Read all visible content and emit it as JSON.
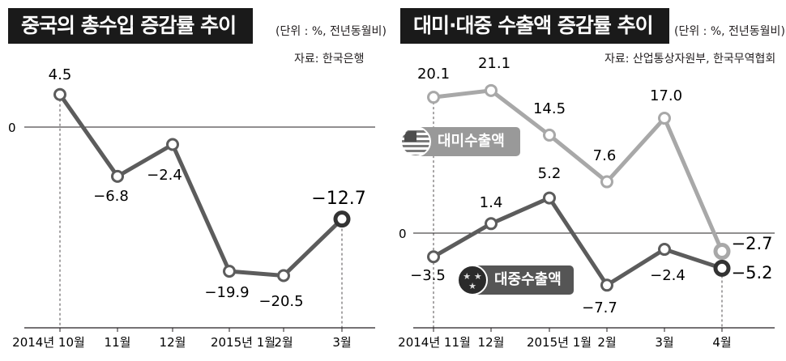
{
  "colors": {
    "dark_series": "#5c5c5c",
    "light_series": "#a8a8a8",
    "title_bg": "#1a1a1a",
    "axis": "#231f20"
  },
  "left": {
    "title": "중국의 총수입 증감률 추이",
    "unit": "(단위 : %, 전년동월비)",
    "source": "자료: 한국은행"
  },
  "right": {
    "title": "대미·대중 수출액 증감률 추이",
    "unit": "(단위 : %, 전년동월비)",
    "source": "자료: 산업통상자원부, 한국무역협회",
    "badge_us": "대미수출액",
    "badge_cn": "대중수출액",
    "icon_us": "us-flag-icon",
    "icon_cn": "china-flag-icon"
  },
  "chart_data": [
    {
      "type": "line",
      "title": "중국의 총수입 증감률 추이",
      "unit": "(단위 : %, 전년동월비)",
      "source": "자료: 한국은행",
      "categories": [
        "2014년 10월",
        "11월",
        "12월",
        "2015년 1월",
        "2월",
        "3월"
      ],
      "series": [
        {
          "values": [
            4.5,
            -6.8,
            -2.4,
            -19.9,
            -20.5,
            -12.7
          ],
          "labels": [
            "4.5",
            "-6.8",
            "-2.4",
            "-19.9",
            "-20.5",
            "-12.7"
          ]
        }
      ],
      "y_zero_label": "0",
      "ylim": [
        -27,
        9
      ],
      "grid": false
    },
    {
      "type": "line",
      "title": "대미·대중 수출액 증감률 추이",
      "unit": "(단위 : %, 전년동월비)",
      "source": "자료: 산업통상자원부, 한국무역협회",
      "categories": [
        "2014년 11월",
        "12월",
        "2015년 1월",
        "2월",
        "3월",
        "4월"
      ],
      "series": [
        {
          "name": "대미수출액",
          "values": [
            20.1,
            21.1,
            14.5,
            7.6,
            17.0,
            -2.7
          ],
          "labels": [
            "20.1",
            "21.1",
            "14.5",
            "7.6",
            "17.0",
            "-2.7"
          ]
        },
        {
          "name": "대중수출액",
          "values": [
            -3.5,
            1.4,
            5.2,
            -7.7,
            -2.4,
            -5.2
          ],
          "labels": [
            "-3.5",
            "1.4",
            "5.2",
            "-7.7",
            "-2.4",
            "-5.2"
          ]
        }
      ],
      "y_zero_label": "0",
      "ylim": [
        -12,
        28
      ],
      "grid": false
    }
  ]
}
